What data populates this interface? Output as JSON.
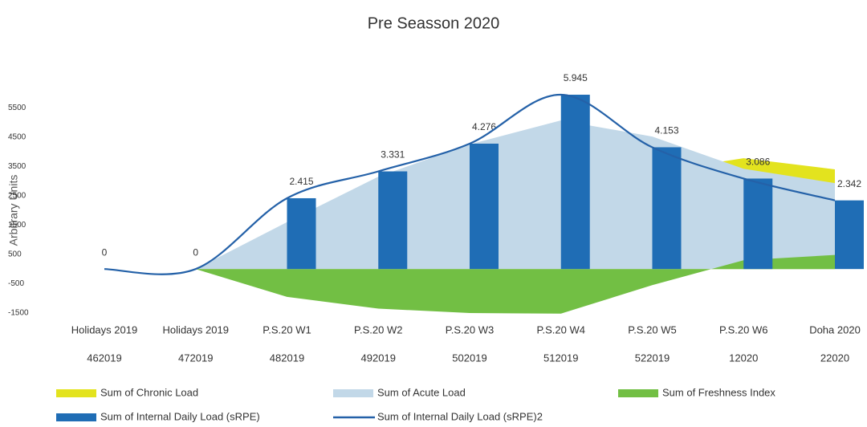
{
  "chart_data": {
    "type": "combo",
    "title": "Pre Seasson 2020",
    "y_label": "Arbitrary Units",
    "categories": [
      "Holidays 2019",
      "Holidays 2019",
      "P.S.20 W1",
      "P.S.20 W2",
      "P.S.20 W3",
      "P.S.20 W4",
      "P.S.20 W5",
      "P.S.20 W6",
      "Doha 2020"
    ],
    "category_codes": [
      "462019",
      "472019",
      "482019",
      "492019",
      "502019",
      "512019",
      "522019",
      "12020",
      "22020"
    ],
    "ylim": [
      -1500,
      6000
    ],
    "yticks": [
      5500,
      4500,
      3500,
      2500,
      1500,
      500,
      -500,
      -1500
    ],
    "series": [
      {
        "name": "Sum of Chronic Load",
        "type": "area",
        "color": "#e3e31e",
        "values": [
          0,
          0,
          600,
          1300,
          2000,
          2700,
          3300,
          3780,
          3400
        ]
      },
      {
        "name": "Sum of Acute Load",
        "type": "area",
        "color": "#c2d8e8",
        "values": [
          0,
          0,
          1600,
          3150,
          4250,
          5070,
          4520,
          3420,
          2930
        ]
      },
      {
        "name": "Sum of Freshness Index",
        "type": "area",
        "color": "#72bf44",
        "values": [
          0,
          0,
          -950,
          -1350,
          -1500,
          -1520,
          -550,
          300,
          480
        ]
      },
      {
        "name": "Sum of Internal Daily Load (sRPE)",
        "type": "bar",
        "color": "#1f6db5",
        "values": [
          0,
          0,
          2415,
          3331,
          4276,
          5945,
          4153,
          3086,
          2342
        ],
        "value_labels": [
          "0",
          "0",
          "2.415",
          "3.331",
          "4.276",
          "5.945",
          "4.153",
          "3.086",
          "2.342"
        ]
      },
      {
        "name": "Sum of Internal Daily Load (sRPE)2",
        "type": "line",
        "color": "#2461a8",
        "values": [
          0,
          0,
          2415,
          3331,
          4276,
          5945,
          4153,
          3086,
          2342
        ]
      }
    ]
  }
}
